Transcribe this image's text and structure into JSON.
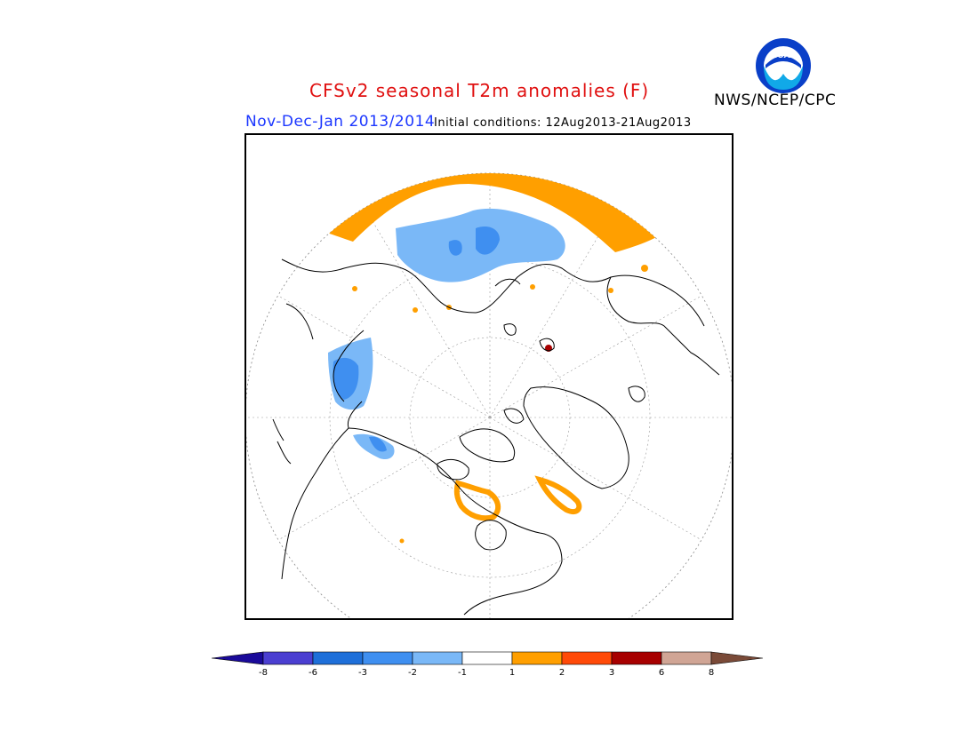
{
  "header": {
    "title": "CFSv2 seasonal T2m anomalies (F)",
    "season": "Nov-Dec-Jan 2013/2014",
    "initial_conditions": "Initial conditions: 12Aug2013-21Aug2013",
    "agency": "NWS/NCEP/CPC",
    "logo_text": "NOAA"
  },
  "map": {
    "projection": "north-polar-stereographic",
    "variable": "2m temperature anomaly",
    "units": "F"
  },
  "legend": {
    "tick_labels": [
      "-8",
      "-6",
      "-3",
      "-2",
      "-1",
      "1",
      "2",
      "3",
      "6",
      "8"
    ],
    "colors": [
      "#1a0a9a",
      "#4b3fd1",
      "#1e6fd9",
      "#3f8ff0",
      "#7ab8f7",
      "#ffffff",
      "#ff9f00",
      "#ff4a08",
      "#a70000",
      "#d0a595",
      "#7a4a38"
    ]
  }
}
